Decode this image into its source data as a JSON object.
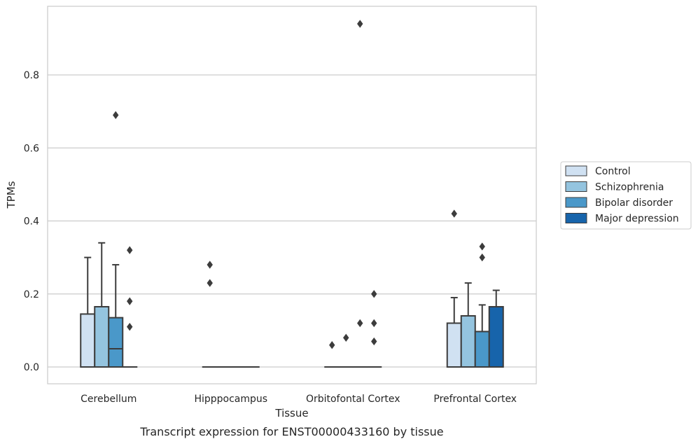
{
  "chart_data": {
    "type": "box",
    "xlabel": "Tissue",
    "ylabel": "TPMs",
    "caption": "Transcript expression for ENST00000433160 by tissue",
    "ylim": [
      -0.045,
      0.99
    ],
    "yticks": [
      "0.0",
      "0.2",
      "0.4",
      "0.6",
      "0.8"
    ],
    "ytick_values": [
      0.0,
      0.2,
      0.4,
      0.6,
      0.8
    ],
    "grid": true,
    "legend_position": "right",
    "categories": [
      "Cerebellum",
      "Hipppocampus",
      "Orbitofontal Cortex",
      "Prefrontal Cortex"
    ],
    "series": [
      {
        "name": "Control",
        "color": "#d0e1f2",
        "boxes": [
          {
            "q1": 0.0,
            "median": 0.0,
            "q3": 0.145,
            "whisker_low": 0.0,
            "whisker_high": 0.3,
            "outliers": []
          },
          {
            "q1": 0.0,
            "median": 0.0,
            "q3": 0.0,
            "whisker_low": 0.0,
            "whisker_high": 0.0,
            "outliers": [
              0.28,
              0.23
            ]
          },
          {
            "q1": 0.0,
            "median": 0.0,
            "q3": 0.0,
            "whisker_low": 0.0,
            "whisker_high": 0.0,
            "outliers": [
              0.06
            ]
          },
          {
            "q1": 0.0,
            "median": 0.0,
            "q3": 0.12,
            "whisker_low": 0.0,
            "whisker_high": 0.19,
            "outliers": [
              0.42
            ]
          }
        ]
      },
      {
        "name": "Schizophrenia",
        "color": "#94c4df",
        "boxes": [
          {
            "q1": 0.0,
            "median": 0.0,
            "q3": 0.165,
            "whisker_low": 0.0,
            "whisker_high": 0.34,
            "outliers": []
          },
          {
            "q1": 0.0,
            "median": 0.0,
            "q3": 0.0,
            "whisker_low": 0.0,
            "whisker_high": 0.0,
            "outliers": []
          },
          {
            "q1": 0.0,
            "median": 0.0,
            "q3": 0.0,
            "whisker_low": 0.0,
            "whisker_high": 0.0,
            "outliers": [
              0.08
            ]
          },
          {
            "q1": 0.0,
            "median": 0.0,
            "q3": 0.14,
            "whisker_low": 0.0,
            "whisker_high": 0.23,
            "outliers": []
          }
        ]
      },
      {
        "name": "Bipolar disorder",
        "color": "#4a98c9",
        "boxes": [
          {
            "q1": 0.0,
            "median": 0.05,
            "q3": 0.135,
            "whisker_low": 0.0,
            "whisker_high": 0.28,
            "outliers": [
              0.69
            ]
          },
          {
            "q1": 0.0,
            "median": 0.0,
            "q3": 0.0,
            "whisker_low": 0.0,
            "whisker_high": 0.0,
            "outliers": []
          },
          {
            "q1": 0.0,
            "median": 0.0,
            "q3": 0.0,
            "whisker_low": 0.0,
            "whisker_high": 0.0,
            "outliers": [
              0.94,
              0.12
            ]
          },
          {
            "q1": 0.0,
            "median": 0.0,
            "q3": 0.097,
            "whisker_low": 0.0,
            "whisker_high": 0.17,
            "outliers": [
              0.33,
              0.3
            ]
          }
        ]
      },
      {
        "name": "Major depression",
        "color": "#1764ab",
        "boxes": [
          {
            "q1": 0.0,
            "median": 0.0,
            "q3": 0.0,
            "whisker_low": 0.0,
            "whisker_high": 0.0,
            "outliers": [
              0.32,
              0.18,
              0.11
            ]
          },
          {
            "q1": 0.0,
            "median": 0.0,
            "q3": 0.0,
            "whisker_low": 0.0,
            "whisker_high": 0.0,
            "outliers": []
          },
          {
            "q1": 0.0,
            "median": 0.0,
            "q3": 0.0,
            "whisker_low": 0.0,
            "whisker_high": 0.0,
            "outliers": [
              0.2,
              0.12,
              0.07
            ]
          },
          {
            "q1": 0.0,
            "median": 0.0,
            "q3": 0.165,
            "whisker_low": 0.0,
            "whisker_high": 0.21,
            "outliers": []
          }
        ]
      }
    ]
  }
}
